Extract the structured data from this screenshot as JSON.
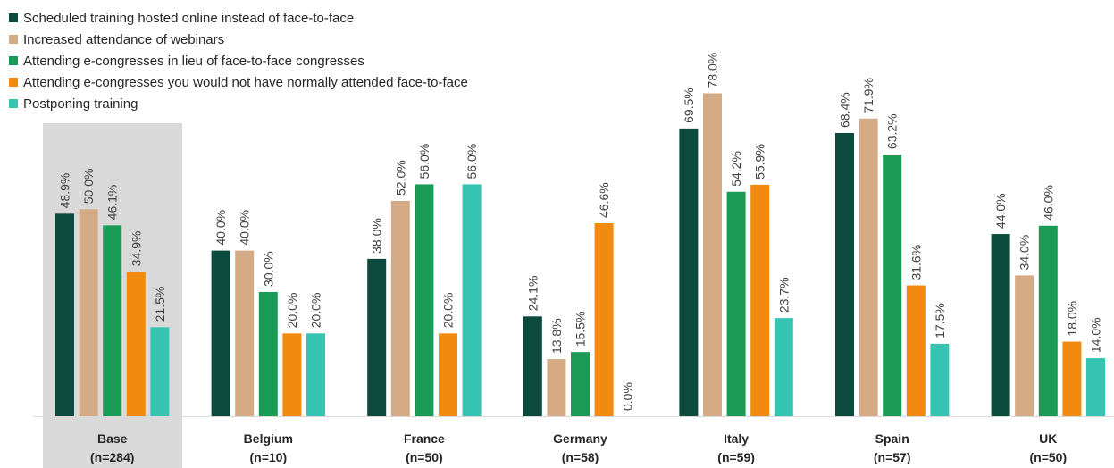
{
  "chart_data": {
    "type": "bar",
    "categories": [
      "Base",
      "Belgium",
      "France",
      "Germany",
      "Italy",
      "Spain",
      "UK"
    ],
    "category_sublabels": [
      "(n=284)",
      "(n=10)",
      "(n=50)",
      "(n=58)",
      "(n=59)",
      "(n=57)",
      "(n=50)"
    ],
    "highlight_category": "Base",
    "ylim": [
      0,
      100
    ],
    "value_suffix": "%",
    "legend_position": "top-left",
    "series": [
      {
        "name": "Scheduled training hosted online instead of face-to-face",
        "color": "#0b4a3c",
        "values": [
          48.9,
          40.0,
          38.0,
          24.1,
          69.5,
          68.4,
          44.0
        ]
      },
      {
        "name": "Increased attendance of webinars",
        "color": "#d4ab85",
        "values": [
          50.0,
          40.0,
          52.0,
          13.8,
          78.0,
          71.9,
          34.0
        ]
      },
      {
        "name": "Attending e-congresses in lieu of face-to-face congresses",
        "color": "#1a9b55",
        "values": [
          46.1,
          30.0,
          56.0,
          15.5,
          54.2,
          63.2,
          46.0
        ]
      },
      {
        "name": "Attending e-congresses you would not have normally attended face-to-face",
        "color": "#f28a0f",
        "values": [
          34.9,
          20.0,
          20.0,
          46.6,
          55.9,
          31.6,
          18.0
        ]
      },
      {
        "name": "Postponing training",
        "color": "#34c4b1",
        "values": [
          21.5,
          20.0,
          56.0,
          0.0,
          23.7,
          17.5,
          14.0
        ]
      }
    ]
  }
}
